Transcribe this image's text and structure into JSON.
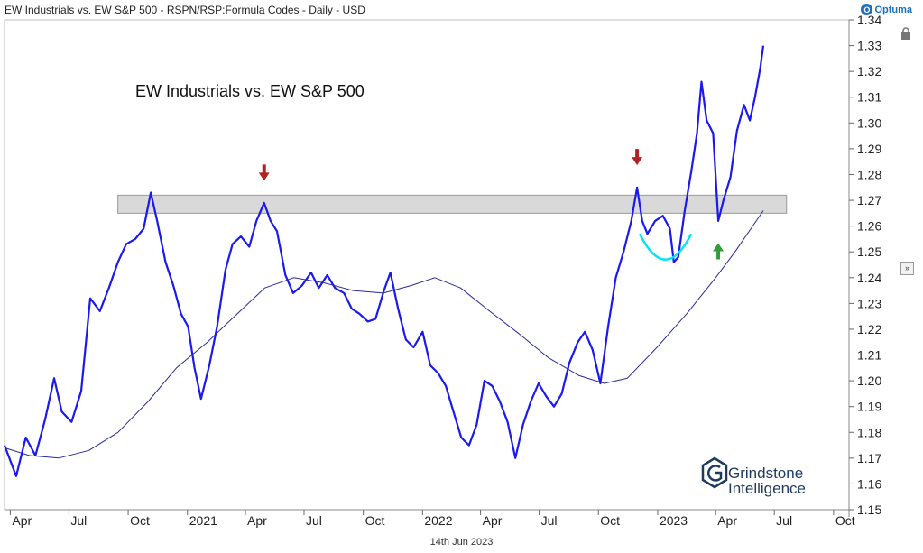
{
  "header": {
    "title": "EW Industrials vs. EW S&P 500 - RSPN/RSP:Formula Codes - Daily - USD",
    "brand": "Optuma"
  },
  "footer": {
    "date": "14th Jun 2023"
  },
  "watermark": {
    "line1": "Grindstone",
    "line2": "Intelligence"
  },
  "colors": {
    "price_line": "#1a1aee",
    "ma_line": "#2a2a9a",
    "band_fill": "#d9d9d9",
    "down_arrow": "#b22222",
    "up_arrow": "#2e9e3a",
    "cup": "#00e5ee"
  },
  "chart_data": {
    "type": "line",
    "title": "EW Industrials vs. EW S&P 500",
    "xlabel": "",
    "ylabel": "",
    "x_tick_labels": [
      "Apr",
      "Jul",
      "Oct",
      "2021",
      "Apr",
      "Jul",
      "Oct",
      "2022",
      "Apr",
      "Jul",
      "Oct",
      "2023",
      "Apr",
      "Jul",
      "Oct"
    ],
    "x_range": [
      "2020-03-23",
      "2023-10-25"
    ],
    "ylim": [
      1.15,
      1.34
    ],
    "y_ticks": [
      1.15,
      1.16,
      1.17,
      1.18,
      1.19,
      1.2,
      1.21,
      1.22,
      1.23,
      1.24,
      1.25,
      1.26,
      1.27,
      1.28,
      1.29,
      1.3,
      1.31,
      1.32,
      1.33,
      1.34
    ],
    "resistance_band": [
      1.265,
      1.272
    ],
    "series": [
      {
        "key": "ratio",
        "points": [
          [
            "2020-03-23",
            1.175
          ],
          [
            "2020-04-10",
            1.163
          ],
          [
            "2020-04-25",
            1.178
          ],
          [
            "2020-05-10",
            1.171
          ],
          [
            "2020-05-25",
            1.185
          ],
          [
            "2020-06-08",
            1.201
          ],
          [
            "2020-06-20",
            1.188
          ],
          [
            "2020-07-05",
            1.184
          ],
          [
            "2020-07-20",
            1.196
          ],
          [
            "2020-08-03",
            1.232
          ],
          [
            "2020-08-18",
            1.227
          ],
          [
            "2020-09-01",
            1.236
          ],
          [
            "2020-09-15",
            1.246
          ],
          [
            "2020-09-28",
            1.253
          ],
          [
            "2020-10-12",
            1.255
          ],
          [
            "2020-10-25",
            1.259
          ],
          [
            "2020-11-05",
            1.273
          ],
          [
            "2020-11-15",
            1.262
          ],
          [
            "2020-11-28",
            1.246
          ],
          [
            "2020-12-10",
            1.237
          ],
          [
            "2020-12-22",
            1.226
          ],
          [
            "2021-01-02",
            1.221
          ],
          [
            "2021-01-12",
            1.205
          ],
          [
            "2021-01-22",
            1.193
          ],
          [
            "2021-02-04",
            1.206
          ],
          [
            "2021-02-16",
            1.221
          ],
          [
            "2021-03-01",
            1.243
          ],
          [
            "2021-03-12",
            1.253
          ],
          [
            "2021-03-25",
            1.256
          ],
          [
            "2021-04-07",
            1.252
          ],
          [
            "2021-04-18",
            1.262
          ],
          [
            "2021-04-30",
            1.269
          ],
          [
            "2021-05-10",
            1.262
          ],
          [
            "2021-05-20",
            1.258
          ],
          [
            "2021-06-02",
            1.241
          ],
          [
            "2021-06-14",
            1.234
          ],
          [
            "2021-06-28",
            1.237
          ],
          [
            "2021-07-12",
            1.242
          ],
          [
            "2021-07-24",
            1.236
          ],
          [
            "2021-08-06",
            1.241
          ],
          [
            "2021-08-18",
            1.236
          ],
          [
            "2021-09-01",
            1.234
          ],
          [
            "2021-09-13",
            1.228
          ],
          [
            "2021-09-25",
            1.226
          ],
          [
            "2021-10-08",
            1.223
          ],
          [
            "2021-10-20",
            1.224
          ],
          [
            "2021-11-02",
            1.235
          ],
          [
            "2021-11-12",
            1.242
          ],
          [
            "2021-11-24",
            1.228
          ],
          [
            "2021-12-06",
            1.216
          ],
          [
            "2021-12-18",
            1.213
          ],
          [
            "2022-01-01",
            1.219
          ],
          [
            "2022-01-13",
            1.206
          ],
          [
            "2022-01-25",
            1.203
          ],
          [
            "2022-02-06",
            1.198
          ],
          [
            "2022-02-18",
            1.188
          ],
          [
            "2022-03-02",
            1.178
          ],
          [
            "2022-03-14",
            1.175
          ],
          [
            "2022-03-26",
            1.183
          ],
          [
            "2022-04-07",
            1.2
          ],
          [
            "2022-04-19",
            1.198
          ],
          [
            "2022-05-01",
            1.192
          ],
          [
            "2022-05-13",
            1.184
          ],
          [
            "2022-05-25",
            1.17
          ],
          [
            "2022-06-06",
            1.183
          ],
          [
            "2022-06-18",
            1.192
          ],
          [
            "2022-06-30",
            1.199
          ],
          [
            "2022-07-12",
            1.194
          ],
          [
            "2022-07-24",
            1.19
          ],
          [
            "2022-08-05",
            1.195
          ],
          [
            "2022-08-17",
            1.207
          ],
          [
            "2022-08-30",
            1.215
          ],
          [
            "2022-09-10",
            1.219
          ],
          [
            "2022-09-22",
            1.212
          ],
          [
            "2022-10-04",
            1.199
          ],
          [
            "2022-10-16",
            1.221
          ],
          [
            "2022-10-28",
            1.24
          ],
          [
            "2022-11-09",
            1.25
          ],
          [
            "2022-11-21",
            1.262
          ],
          [
            "2022-11-30",
            1.275
          ],
          [
            "2022-12-08",
            1.262
          ],
          [
            "2022-12-16",
            1.257
          ],
          [
            "2022-12-28",
            1.262
          ],
          [
            "2023-01-09",
            1.264
          ],
          [
            "2023-01-20",
            1.259
          ],
          [
            "2023-01-26",
            1.246
          ],
          [
            "2023-02-02",
            1.248
          ],
          [
            "2023-02-12",
            1.266
          ],
          [
            "2023-02-22",
            1.281
          ],
          [
            "2023-03-03",
            1.296
          ],
          [
            "2023-03-10",
            1.316
          ],
          [
            "2023-03-18",
            1.301
          ],
          [
            "2023-03-28",
            1.296
          ],
          [
            "2023-04-05",
            1.262
          ],
          [
            "2023-04-13",
            1.27
          ],
          [
            "2023-04-24",
            1.279
          ],
          [
            "2023-05-04",
            1.297
          ],
          [
            "2023-05-15",
            1.307
          ],
          [
            "2023-05-24",
            1.301
          ],
          [
            "2023-06-01",
            1.31
          ],
          [
            "2023-06-09",
            1.321
          ],
          [
            "2023-06-14",
            1.33
          ]
        ]
      },
      {
        "key": "moving_average",
        "points": [
          [
            "2020-03-23",
            1.174
          ],
          [
            "2020-05-01",
            1.171
          ],
          [
            "2020-06-15",
            1.17
          ],
          [
            "2020-08-01",
            1.173
          ],
          [
            "2020-09-15",
            1.18
          ],
          [
            "2020-11-01",
            1.192
          ],
          [
            "2020-12-15",
            1.205
          ],
          [
            "2021-02-01",
            1.215
          ],
          [
            "2021-03-15",
            1.225
          ],
          [
            "2021-05-01",
            1.236
          ],
          [
            "2021-06-15",
            1.24
          ],
          [
            "2021-08-01",
            1.238
          ],
          [
            "2021-09-15",
            1.235
          ],
          [
            "2021-11-01",
            1.234
          ],
          [
            "2021-12-15",
            1.237
          ],
          [
            "2022-01-20",
            1.24
          ],
          [
            "2022-03-01",
            1.236
          ],
          [
            "2022-04-15",
            1.227
          ],
          [
            "2022-06-01",
            1.218
          ],
          [
            "2022-07-15",
            1.209
          ],
          [
            "2022-09-01",
            1.202
          ],
          [
            "2022-10-10",
            1.199
          ],
          [
            "2022-11-15",
            1.201
          ],
          [
            "2022-12-31",
            1.213
          ],
          [
            "2023-02-15",
            1.226
          ],
          [
            "2023-04-01",
            1.24
          ],
          [
            "2023-05-01",
            1.25
          ],
          [
            "2023-06-14",
            1.266
          ]
        ]
      }
    ],
    "annotations": [
      {
        "type": "down-arrow",
        "date": "2021-04-30",
        "value": 1.279
      },
      {
        "type": "down-arrow",
        "date": "2022-11-30",
        "value": 1.285
      },
      {
        "type": "up-arrow",
        "date": "2023-04-05",
        "value": 1.252
      },
      {
        "type": "cup",
        "from": "2022-12-04",
        "to": "2023-02-22",
        "value": 1.244
      }
    ]
  }
}
